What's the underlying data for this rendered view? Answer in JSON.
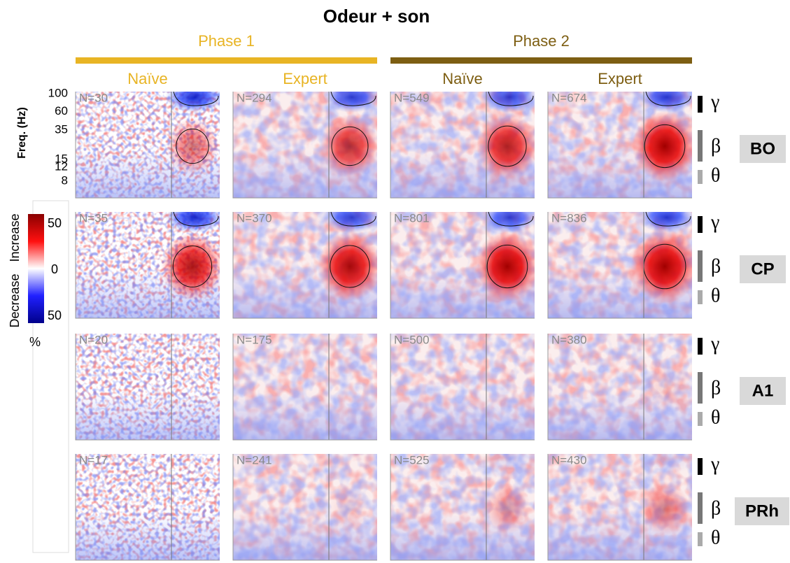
{
  "title": "Odeur + son",
  "y_axis_label": "Freq. (Hz)",
  "freq_ticks": [
    100,
    60,
    35,
    15,
    12,
    8
  ],
  "phases": [
    {
      "label": "Phase 1",
      "color": "#e8b424",
      "columns": [
        "Naïve",
        "Expert"
      ]
    },
    {
      "label": "Phase 2",
      "color": "#7d5e12",
      "columns": [
        "Naïve",
        "Expert"
      ]
    }
  ],
  "rows": [
    {
      "region": "BO",
      "counts": [
        "N=30",
        "N=294",
        "N=549",
        "N=674"
      ]
    },
    {
      "region": "CP",
      "counts": [
        "N=35",
        "N=370",
        "N=801",
        "N=836"
      ]
    },
    {
      "region": "A1",
      "counts": [
        "N=20",
        "N=175",
        "N=500",
        "N=380"
      ]
    },
    {
      "region": "PRh",
      "counts": [
        "N=17",
        "N=241",
        "N=525",
        "N=430"
      ]
    }
  ],
  "bands": [
    "γ",
    "β",
    "θ"
  ],
  "colorbar": {
    "label_increase": "Increase",
    "label_decrease": "Decrease",
    "unit": "%",
    "ticks": [
      {
        "value": 50,
        "label": "50"
      },
      0,
      {
        "value": -50,
        "label": "50"
      }
    ]
  }
}
